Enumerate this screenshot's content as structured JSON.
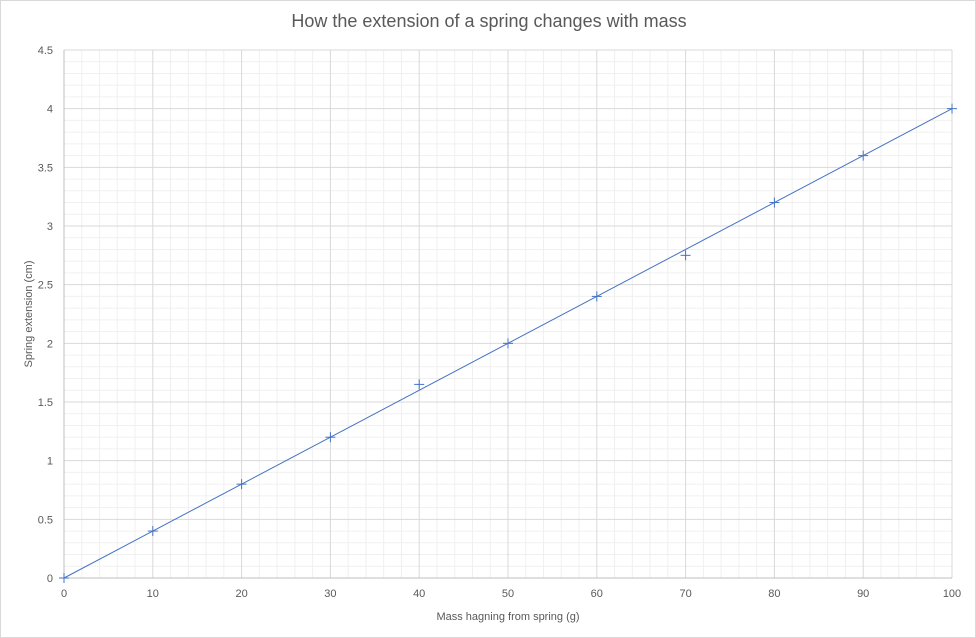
{
  "chart_data": {
    "type": "scatter",
    "title": "How the extension of a spring changes with mass",
    "xlabel": "Mass hagning from spring (g)",
    "ylabel": "Spring extension (cm)",
    "xlim": [
      0,
      100
    ],
    "ylim": [
      0,
      4.5
    ],
    "x_ticks": [
      "0",
      "10",
      "20",
      "30",
      "40",
      "50",
      "60",
      "70",
      "80",
      "90",
      "100"
    ],
    "y_ticks": [
      "0",
      "0.5",
      "1",
      "1.5",
      "2",
      "2.5",
      "3",
      "3.5",
      "4",
      "4.5"
    ],
    "grid": true,
    "minor_grid": true,
    "legend": "none",
    "marker": "plus",
    "series": [
      {
        "x": [
          0,
          10,
          20,
          30,
          40,
          50,
          60,
          70,
          80,
          90,
          100
        ],
        "y": [
          0,
          0.4,
          0.8,
          1.2,
          1.65,
          2.0,
          2.4,
          2.75,
          3.2,
          3.6,
          4.0
        ],
        "color": "#4472c4"
      }
    ],
    "trendline": {
      "type": "linear",
      "slope": 0.04,
      "intercept": 0,
      "color": "#4472c4"
    }
  }
}
